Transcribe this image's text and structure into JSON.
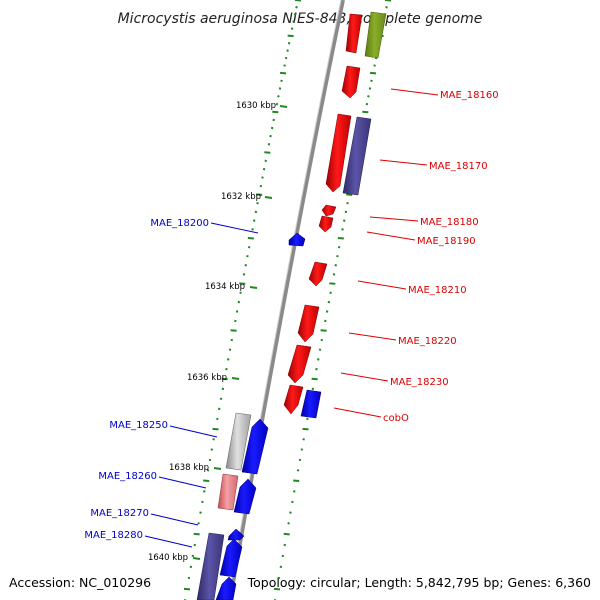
{
  "title": "Microcystis aeruginosa NIES-843, complete genome",
  "footer": {
    "accession": "Accession: NC_010296",
    "summary": "Topology: circular; Length: 5,842,795 bp; Genes: 6,360"
  },
  "colors": {
    "forward_label": "#dd0000",
    "reverse_label": "#0000cc",
    "backbone": "#8a8a8a",
    "tick": "#228822"
  },
  "ruler_labels": [
    "1630 kbp",
    "1632 kbp",
    "1634 kbp",
    "1636 kbp",
    "1638 kbp",
    "1640 kbp"
  ],
  "gene_labels": {
    "right": [
      "MAE_18160",
      "MAE_18170",
      "MAE_18180",
      "MAE_18190",
      "MAE_18210",
      "MAE_18220",
      "MAE_18230",
      "cobO"
    ],
    "left": [
      "MAE_18200",
      "MAE_18250",
      "MAE_18260",
      "MAE_18270",
      "MAE_18280"
    ]
  }
}
